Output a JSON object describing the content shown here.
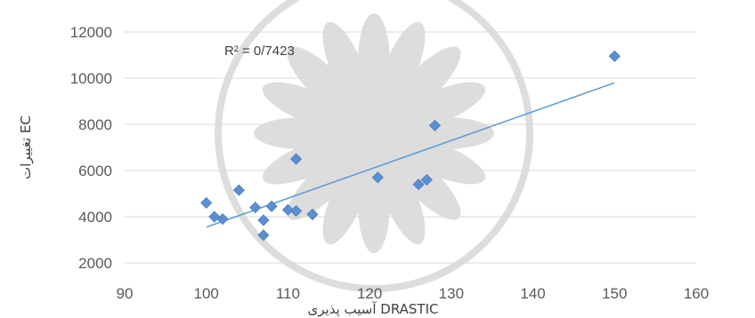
{
  "chart_data": {
    "type": "scatter",
    "xlabel": "آسیب پذیری DRASTIC",
    "ylabel": "تغییرات EC",
    "annotation": "R² = 0/7423",
    "xlim": [
      90,
      160
    ],
    "ylim": [
      2000,
      12000
    ],
    "x_ticks": [
      90,
      100,
      110,
      120,
      130,
      140,
      150,
      160
    ],
    "y_ticks": [
      2000,
      4000,
      6000,
      8000,
      10000,
      12000
    ],
    "grid": "horizontal",
    "marker_color": "#5b8fd0",
    "trendline_color": "#5b9bd5",
    "points": [
      {
        "x": 100,
        "y": 4600
      },
      {
        "x": 101,
        "y": 4000
      },
      {
        "x": 102,
        "y": 3900
      },
      {
        "x": 104,
        "y": 5150
      },
      {
        "x": 106,
        "y": 4400
      },
      {
        "x": 107,
        "y": 3850
      },
      {
        "x": 107,
        "y": 3200
      },
      {
        "x": 108,
        "y": 4450
      },
      {
        "x": 110,
        "y": 4300
      },
      {
        "x": 111,
        "y": 4250
      },
      {
        "x": 111,
        "y": 6500
      },
      {
        "x": 113,
        "y": 4100
      },
      {
        "x": 121,
        "y": 5700
      },
      {
        "x": 126,
        "y": 5400
      },
      {
        "x": 127,
        "y": 5600
      },
      {
        "x": 128,
        "y": 7950
      },
      {
        "x": 150,
        "y": 10950
      }
    ],
    "trendline": {
      "x": [
        100,
        150
      ],
      "y": [
        3550,
        9800
      ]
    }
  }
}
